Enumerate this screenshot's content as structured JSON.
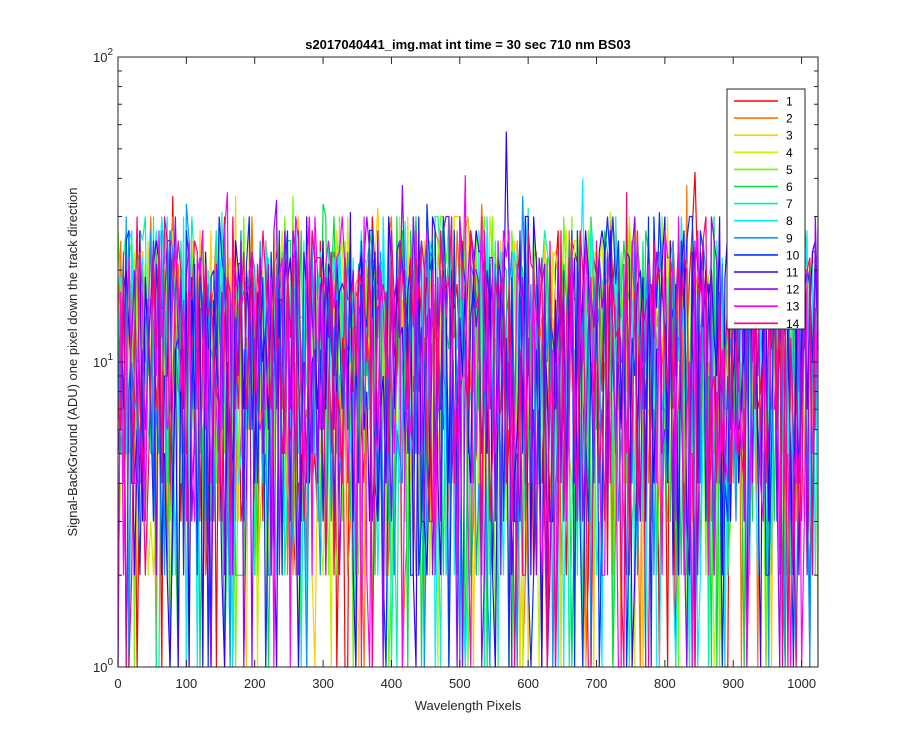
{
  "chart_data": {
    "type": "line",
    "title": "s2017040441_img.mat int time = 30 sec  710 nm BS03",
    "xlabel": "Wavelength Pixels",
    "ylabel": "Signal-BackGround (ADU) one pixel down the track direction",
    "xlim": [
      0,
      1024
    ],
    "ylim": [
      1,
      100
    ],
    "yscale": "log",
    "grid": false,
    "legend_position": "top-right",
    "x_ticks": [
      "0",
      "100",
      "200",
      "300",
      "400",
      "500",
      "600",
      "700",
      "800",
      "900",
      "1000"
    ],
    "y_ticks": [
      {
        "base": "10",
        "exp": "0"
      },
      {
        "base": "10",
        "exp": "1"
      },
      {
        "base": "10",
        "exp": "2"
      }
    ],
    "x_step": 4,
    "series": [
      {
        "name": "1",
        "color": "#ff0000",
        "peaks": [
          [
            842,
            42
          ],
          [
            80,
            35
          ]
        ]
      },
      {
        "name": "2",
        "color": "#ff7000",
        "peaks": [
          [
            830,
            38
          ],
          [
            530,
            33
          ]
        ]
      },
      {
        "name": "3",
        "color": "#ffcc00",
        "peaks": [
          [
            170,
            35
          ],
          [
            380,
            32
          ]
        ]
      },
      {
        "name": "4",
        "color": "#c8f000",
        "peaks": [
          [
            490,
            30
          ],
          [
            720,
            31
          ]
        ]
      },
      {
        "name": "5",
        "color": "#66ff00",
        "peaks": [
          [
            255,
            35
          ],
          [
            650,
            30
          ]
        ]
      },
      {
        "name": "6",
        "color": "#00e040",
        "peaks": [
          [
            300,
            33
          ],
          [
            870,
            30
          ]
        ]
      },
      {
        "name": "7",
        "color": "#00f5a0",
        "peaks": [
          [
            150,
            31
          ],
          [
            600,
            32
          ]
        ]
      },
      {
        "name": "8",
        "color": "#00f0ff",
        "peaks": [
          [
            680,
            40
          ],
          [
            420,
            29
          ]
        ]
      },
      {
        "name": "9",
        "color": "#0099ff",
        "peaks": [
          [
            100,
            33
          ],
          [
            590,
            35
          ]
        ]
      },
      {
        "name": "10",
        "color": "#0033ff",
        "peaks": [
          [
            450,
            33
          ],
          [
            790,
            31
          ]
        ]
      },
      {
        "name": "11",
        "color": "#3300ff",
        "peaks": [
          [
            567,
            57
          ],
          [
            340,
            31
          ]
        ]
      },
      {
        "name": "12",
        "color": "#9900ff",
        "peaks": [
          [
            415,
            38
          ],
          [
            230,
            34
          ]
        ]
      },
      {
        "name": "13",
        "color": "#ff00ff",
        "peaks": [
          [
            160,
            36
          ],
          [
            508,
            41
          ]
        ]
      },
      {
        "name": "14",
        "color": "#ff0077",
        "peaks": [
          [
            745,
            36
          ],
          [
            960,
            30
          ]
        ]
      }
    ]
  }
}
